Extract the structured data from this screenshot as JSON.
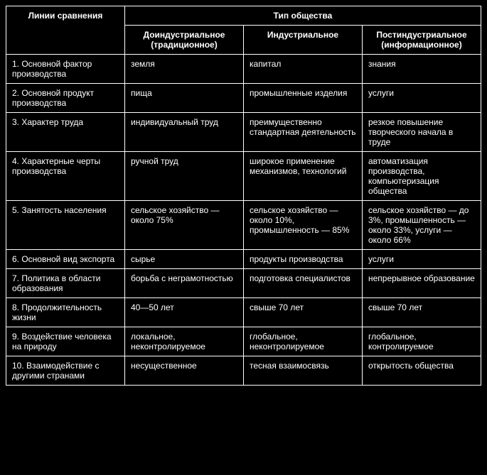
{
  "table": {
    "colors": {
      "background": "#000000",
      "text": "#ffffff",
      "border": "#ffffff"
    },
    "header": {
      "comparison": "Линии сравнения",
      "society_type": "Тип общества",
      "col_preindustrial": "Доиндустриальное (традиционное)",
      "col_industrial": "Индустриальное",
      "col_postindustrial": "Постиндустриальное (информационное)"
    },
    "rows": [
      {
        "label": "1. Основной фактор производства",
        "c1": "земля",
        "c2": "капитал",
        "c3": "знания"
      },
      {
        "label": "2. Основной продукт производства",
        "c1": "пища",
        "c2": "промышленные изделия",
        "c3": "услуги"
      },
      {
        "label": "3. Характер труда",
        "c1": "индивидуальный труд",
        "c2": "преимущественно стандартная деятельность",
        "c3": "резкое повышение творческого начала в труде"
      },
      {
        "label": "4. Характерные черты производства",
        "c1": "ручной труд",
        "c2": "широкое применение механизмов, технологий",
        "c3": "автоматизация производства, компьютеризация общества"
      },
      {
        "label": "5. Занятость населения",
        "c1": "сельское хозяйство — около 75%",
        "c2": "сельское хозяйство — около 10%, промышленность — 85%",
        "c3": "сельское хозяйство — до 3%, промышленность — около 33%, услуги — около 66%"
      },
      {
        "label": "6. Основной вид экспорта",
        "c1": "сырье",
        "c2": "продукты производства",
        "c3": "услуги"
      },
      {
        "label": "7. Политика в области образования",
        "c1": "борьба с неграмотностью",
        "c2": "подготовка специалистов",
        "c3": "непрерывное образование"
      },
      {
        "label": "8. Продолжительность жизни",
        "c1": "40—50 лет",
        "c2": "свыше 70 лет",
        "c3": "свыше 70 лет"
      },
      {
        "label": "9. Воздействие человека на природу",
        "c1": "локальное, неконтролируемое",
        "c2": "глобальное, неконтролируемое",
        "c3": "глобальное, контролируемое"
      },
      {
        "label": "10. Взаимодействие с другими странами",
        "c1": "несущественное",
        "c2": "тесная взаимосвязь",
        "c3": "открытость общества"
      }
    ]
  }
}
